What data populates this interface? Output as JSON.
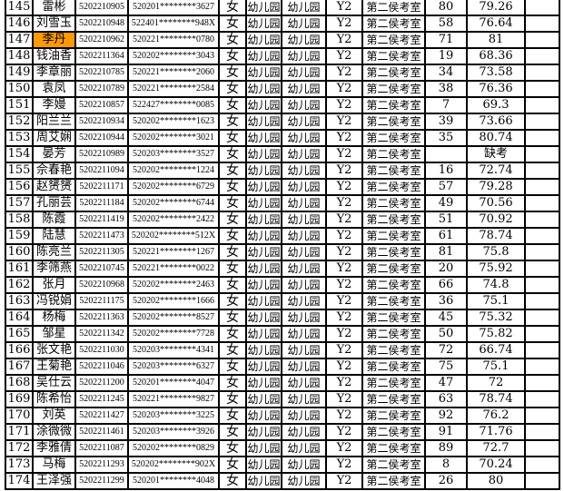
{
  "highlight_color": "#ff9900",
  "rows": [
    [
      "145",
      "雷彬",
      "5202210905",
      "520201********3627",
      "女",
      "幼儿园",
      "幼儿园",
      "Y2",
      "第二侯考室",
      "80",
      "79.26",
      ""
    ],
    [
      "146",
      "刘雪玉",
      "5202210948",
      "522401********948X",
      "女",
      "幼儿园",
      "幼儿园",
      "Y2",
      "第二侯考室",
      "58",
      "76.64",
      ""
    ],
    [
      "147",
      "李丹",
      "5202210962",
      "520221********0780",
      "女",
      "幼儿园",
      "幼儿园",
      "Y2",
      "第二侯考室",
      "71",
      "81",
      ""
    ],
    [
      "148",
      "钱油香",
      "5202211364",
      "520202********3043",
      "女",
      "幼儿园",
      "幼儿园",
      "Y2",
      "第二侯考室",
      "19",
      "68.36",
      ""
    ],
    [
      "149",
      "李章丽",
      "5202210785",
      "520221********2060",
      "女",
      "幼儿园",
      "幼儿园",
      "Y2",
      "第二侯考室",
      "34",
      "73.58",
      ""
    ],
    [
      "150",
      "袁凤",
      "5202210789",
      "520221********2584",
      "女",
      "幼儿园",
      "幼儿园",
      "Y2",
      "第二侯考室",
      "38",
      "76.36",
      ""
    ],
    [
      "151",
      "李嫚",
      "5202210857",
      "522427********0085",
      "女",
      "幼儿园",
      "幼儿园",
      "Y2",
      "第二侯考室",
      "7",
      "69.3",
      ""
    ],
    [
      "152",
      "阳兰兰",
      "5202210934",
      "520202********1623",
      "女",
      "幼儿园",
      "幼儿园",
      "Y2",
      "第二侯考室",
      "39",
      "73.66",
      ""
    ],
    [
      "153",
      "周艾娴",
      "5202210944",
      "520202********3021",
      "女",
      "幼儿园",
      "幼儿园",
      "Y2",
      "第二侯考室",
      "35",
      "80.74",
      ""
    ],
    [
      "154",
      "晏芳",
      "5202210989",
      "520203********3527",
      "女",
      "幼儿园",
      "幼儿园",
      "Y2",
      "第二侯考室",
      "",
      "缺考",
      ""
    ],
    [
      "155",
      "佘春艳",
      "5202211094",
      "520202********1224",
      "女",
      "幼儿园",
      "幼儿园",
      "Y2",
      "第二侯考室",
      "16",
      "72.74",
      ""
    ],
    [
      "156",
      "赵赟赟",
      "5202211171",
      "520202********6729",
      "女",
      "幼儿园",
      "幼儿园",
      "Y2",
      "第二侯考室",
      "57",
      "79.28",
      ""
    ],
    [
      "157",
      "孔丽芸",
      "5202211184",
      "520202********6744",
      "女",
      "幼儿园",
      "幼儿园",
      "Y2",
      "第二侯考室",
      "49",
      "70.56",
      ""
    ],
    [
      "158",
      "陈霞",
      "5202211419",
      "520202********2422",
      "女",
      "幼儿园",
      "幼儿园",
      "Y2",
      "第二侯考室",
      "51",
      "70.92",
      ""
    ],
    [
      "159",
      "陆慧",
      "5202211473",
      "520202********512X",
      "女",
      "幼儿园",
      "幼儿园",
      "Y2",
      "第二侯考室",
      "61",
      "78.74",
      ""
    ],
    [
      "160",
      "陈亮兰",
      "5202211305",
      "520221********1267",
      "女",
      "幼儿园",
      "幼儿园",
      "Y2",
      "第二侯考室",
      "81",
      "75.8",
      ""
    ],
    [
      "161",
      "李筛燕",
      "5202210745",
      "520221********0022",
      "女",
      "幼儿园",
      "幼儿园",
      "Y2",
      "第二侯考室",
      "20",
      "75.92",
      ""
    ],
    [
      "162",
      "张月",
      "5202210968",
      "520202********2463",
      "女",
      "幼儿园",
      "幼儿园",
      "Y2",
      "第二侯考室",
      "66",
      "74.8",
      ""
    ],
    [
      "163",
      "冯锐娟",
      "5202211175",
      "520202********1666",
      "女",
      "幼儿园",
      "幼儿园",
      "Y2",
      "第二侯考室",
      "36",
      "75.1",
      ""
    ],
    [
      "164",
      "杨梅",
      "5202211363",
      "520202********8527",
      "女",
      "幼儿园",
      "幼儿园",
      "Y2",
      "第二侯考室",
      "45",
      "75.32",
      ""
    ],
    [
      "165",
      "邹星",
      "5202211342",
      "520202********7728",
      "女",
      "幼儿园",
      "幼儿园",
      "Y2",
      "第二侯考室",
      "50",
      "75.82",
      ""
    ],
    [
      "166",
      "张文艳",
      "5202211030",
      "520203********4341",
      "女",
      "幼儿园",
      "幼儿园",
      "Y2",
      "第二侯考室",
      "72",
      "66.74",
      ""
    ],
    [
      "167",
      "王菊艳",
      "5202211046",
      "520203********6327",
      "女",
      "幼儿园",
      "幼儿园",
      "Y2",
      "第二侯考室",
      "75",
      "75.1",
      ""
    ],
    [
      "168",
      "吴仕云",
      "5202211200",
      "520201********4047",
      "女",
      "幼儿园",
      "幼儿园",
      "Y2",
      "第二侯考室",
      "47",
      "72",
      ""
    ],
    [
      "169",
      "陈希怡",
      "5202211245",
      "520221********9827",
      "女",
      "幼儿园",
      "幼儿园",
      "Y2",
      "第二侯考室",
      "63",
      "78.74",
      ""
    ],
    [
      "170",
      "刘英",
      "5202211427",
      "520203********3225",
      "女",
      "幼儿园",
      "幼儿园",
      "Y2",
      "第二侯考室",
      "92",
      "76.2",
      ""
    ],
    [
      "171",
      "涂微微",
      "5202211461",
      "520203********3926",
      "女",
      "幼儿园",
      "幼儿园",
      "Y2",
      "第二侯考室",
      "91",
      "71.76",
      ""
    ],
    [
      "172",
      "李雅倩",
      "5202211087",
      "520202********0829",
      "女",
      "幼儿园",
      "幼儿园",
      "Y2",
      "第二侯考室",
      "89",
      "72.7",
      ""
    ],
    [
      "173",
      "马梅",
      "5202211293",
      "520202********902X",
      "女",
      "幼儿园",
      "幼儿园",
      "Y2",
      "第二侯考室",
      "8",
      "70.24",
      ""
    ],
    [
      "174",
      "王泽强",
      "5202211299",
      "520201********4048",
      "女",
      "幼儿园",
      "幼儿园",
      "Y2",
      "第二侯考室",
      "26",
      "80",
      ""
    ]
  ],
  "highlighted_row": "147"
}
